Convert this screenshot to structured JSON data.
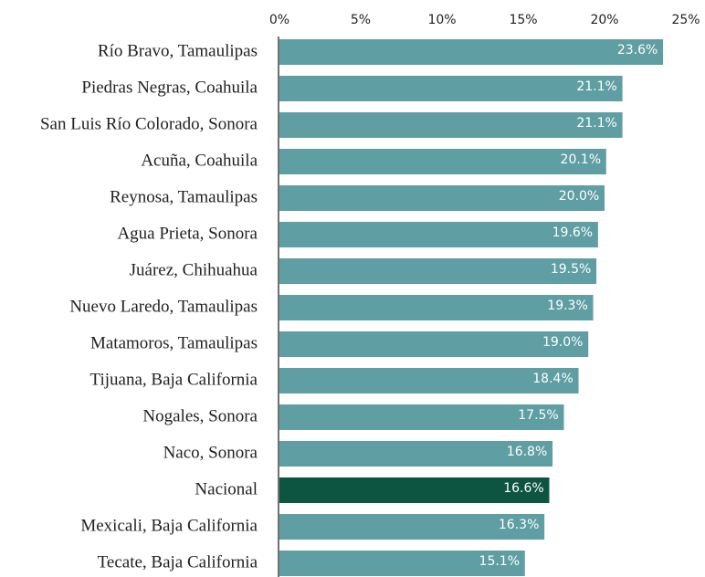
{
  "chart_data": {
    "type": "barh",
    "categories": [
      "Río Bravo, Tamaulipas",
      "Piedras Negras, Coahuila",
      "San Luis Río Colorado, Sonora",
      "Acuña, Coahuila",
      "Reynosa, Tamaulipas",
      "Agua Prieta, Sonora",
      "Juárez, Chihuahua",
      "Nuevo Laredo, Tamaulipas",
      "Matamoros, Tamaulipas",
      "Tijuana, Baja California",
      "Nogales, Sonora",
      "Naco, Sonora",
      "Nacional",
      "Mexicali, Baja California",
      "Tecate, Baja California"
    ],
    "values": [
      23.6,
      21.1,
      21.1,
      20.1,
      20.0,
      19.6,
      19.5,
      19.3,
      19.0,
      18.4,
      17.5,
      16.8,
      16.6,
      16.3,
      15.1
    ],
    "value_labels": [
      "23.6%",
      "21.1%",
      "21.1%",
      "20.1%",
      "20.0%",
      "19.6%",
      "19.5%",
      "19.3%",
      "19.0%",
      "18.4%",
      "17.5%",
      "16.8%",
      "16.6%",
      "16.3%",
      "15.1%"
    ],
    "colors": [
      "#5f9ea2",
      "#5f9ea2",
      "#5f9ea2",
      "#5f9ea2",
      "#5f9ea2",
      "#5f9ea2",
      "#5f9ea2",
      "#5f9ea2",
      "#5f9ea2",
      "#5f9ea2",
      "#5f9ea2",
      "#5f9ea2",
      "#0d5540",
      "#5f9ea2",
      "#5f9ea2"
    ],
    "xlim": [
      0,
      25
    ],
    "xticks": [
      {
        "value": 0,
        "label": "0%"
      },
      {
        "value": 5,
        "label": "5%"
      },
      {
        "value": 10,
        "label": "10%"
      },
      {
        "value": 15,
        "label": "15%"
      },
      {
        "value": 20,
        "label": "20%"
      },
      {
        "value": 25,
        "label": "25%"
      }
    ]
  }
}
